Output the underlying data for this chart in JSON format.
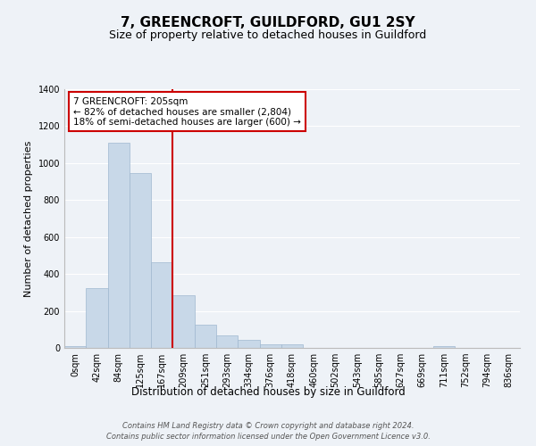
{
  "title": "7, GREENCROFT, GUILDFORD, GU1 2SY",
  "subtitle": "Size of property relative to detached houses in Guildford",
  "xlabel": "Distribution of detached houses by size in Guildford",
  "ylabel": "Number of detached properties",
  "bar_labels": [
    "0sqm",
    "42sqm",
    "84sqm",
    "125sqm",
    "167sqm",
    "209sqm",
    "251sqm",
    "293sqm",
    "334sqm",
    "376sqm",
    "418sqm",
    "460sqm",
    "502sqm",
    "543sqm",
    "585sqm",
    "627sqm",
    "669sqm",
    "711sqm",
    "752sqm",
    "794sqm",
    "836sqm"
  ],
  "bar_values": [
    10,
    325,
    1110,
    945,
    465,
    285,
    125,
    70,
    45,
    18,
    18,
    0,
    0,
    0,
    0,
    0,
    0,
    10,
    0,
    0,
    0
  ],
  "bar_color": "#c8d8e8",
  "bar_edge_color": "#a0b8d0",
  "highlight_line_color": "#cc0000",
  "ylim": [
    0,
    1400
  ],
  "yticks": [
    0,
    200,
    400,
    600,
    800,
    1000,
    1200,
    1400
  ],
  "annotation_title": "7 GREENCROFT: 205sqm",
  "annotation_line1": "← 82% of detached houses are smaller (2,804)",
  "annotation_line2": "18% of semi-detached houses are larger (600) →",
  "annotation_box_color": "#cc0000",
  "footer_line1": "Contains HM Land Registry data © Crown copyright and database right 2024.",
  "footer_line2": "Contains public sector information licensed under the Open Government Licence v3.0.",
  "background_color": "#eef2f7"
}
